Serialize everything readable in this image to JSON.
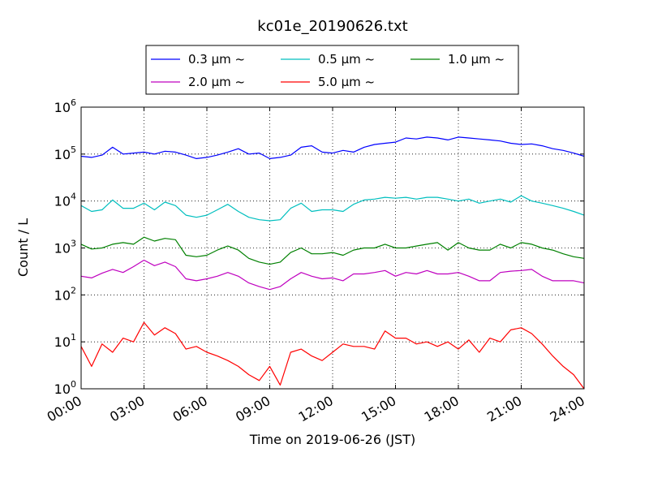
{
  "chart_data": {
    "type": "line",
    "title": "kc01e_20190626.txt",
    "xlabel": "Time on 2019-06-26 (JST)",
    "ylabel": "Count / L",
    "yscale": "log",
    "ylim": [
      1,
      1000000
    ],
    "xlim": [
      "00:00",
      "24:00"
    ],
    "x_ticks": [
      "00:00",
      "03:00",
      "06:00",
      "09:00",
      "12:00",
      "15:00",
      "18:00",
      "21:00",
      "24:00"
    ],
    "y_ticks": [
      {
        "base": "10",
        "exp": "0"
      },
      {
        "base": "10",
        "exp": "1"
      },
      {
        "base": "10",
        "exp": "2"
      },
      {
        "base": "10",
        "exp": "3"
      },
      {
        "base": "10",
        "exp": "4"
      },
      {
        "base": "10",
        "exp": "5"
      },
      {
        "base": "10",
        "exp": "6"
      }
    ],
    "grid": true,
    "legend_position": "top",
    "x": [
      "00:00",
      "00:30",
      "01:00",
      "01:30",
      "02:00",
      "02:30",
      "03:00",
      "03:30",
      "04:00",
      "04:30",
      "05:00",
      "05:30",
      "06:00",
      "06:30",
      "07:00",
      "07:30",
      "08:00",
      "08:30",
      "09:00",
      "09:30",
      "10:00",
      "10:30",
      "11:00",
      "11:30",
      "12:00",
      "12:30",
      "13:00",
      "13:30",
      "14:00",
      "14:30",
      "15:00",
      "15:30",
      "16:00",
      "16:30",
      "17:00",
      "17:30",
      "18:00",
      "18:30",
      "19:00",
      "19:30",
      "20:00",
      "20:30",
      "21:00",
      "21:30",
      "22:00",
      "22:30",
      "23:00",
      "23:30",
      "24:00"
    ],
    "series": [
      {
        "name": "0.3 μm ~",
        "color": "#0000ff",
        "values": [
          90000,
          85000,
          95000,
          140000,
          100000,
          105000,
          110000,
          100000,
          115000,
          110000,
          95000,
          80000,
          85000,
          95000,
          110000,
          130000,
          100000,
          105000,
          80000,
          85000,
          95000,
          140000,
          150000,
          110000,
          105000,
          120000,
          110000,
          140000,
          160000,
          170000,
          180000,
          220000,
          210000,
          230000,
          220000,
          200000,
          230000,
          220000,
          210000,
          200000,
          190000,
          170000,
          160000,
          165000,
          150000,
          130000,
          120000,
          105000,
          90000
        ]
      },
      {
        "name": "0.5 μm ~",
        "color": "#00bfbf",
        "values": [
          8000,
          6000,
          6500,
          10500,
          7000,
          7000,
          9000,
          6500,
          9500,
          8000,
          5000,
          4500,
          5000,
          6500,
          8500,
          6000,
          4500,
          4000,
          3800,
          4000,
          7000,
          9000,
          6000,
          6500,
          6500,
          6000,
          8500,
          10500,
          11000,
          12000,
          11500,
          12000,
          11000,
          12000,
          12000,
          11000,
          10000,
          11000,
          9000,
          10000,
          11000,
          9500,
          13000,
          10000,
          9000,
          8000,
          7000,
          6000,
          5000
        ]
      },
      {
        "name": "1.0 μm ~",
        "color": "#008000",
        "values": [
          1200,
          950,
          1000,
          1200,
          1300,
          1200,
          1700,
          1400,
          1600,
          1500,
          700,
          650,
          700,
          900,
          1100,
          900,
          600,
          500,
          450,
          500,
          800,
          1000,
          750,
          750,
          800,
          700,
          900,
          1000,
          1000,
          1200,
          1000,
          1000,
          1100,
          1200,
          1300,
          900,
          1300,
          1000,
          900,
          900,
          1200,
          1000,
          1300,
          1200,
          1000,
          900,
          750,
          650,
          600
        ]
      },
      {
        "name": "2.0 μm ~",
        "color": "#bf00bf",
        "values": [
          250,
          230,
          290,
          350,
          300,
          400,
          550,
          420,
          500,
          400,
          220,
          200,
          220,
          250,
          300,
          250,
          180,
          150,
          130,
          150,
          220,
          300,
          250,
          220,
          230,
          200,
          280,
          280,
          300,
          330,
          250,
          300,
          280,
          330,
          280,
          280,
          300,
          250,
          200,
          200,
          300,
          320,
          330,
          350,
          250,
          200,
          200,
          200,
          180
        ]
      },
      {
        "name": "5.0 μm ~",
        "color": "#ff0000",
        "values": [
          8,
          3,
          9,
          6,
          12,
          10,
          26,
          14,
          20,
          15,
          7,
          8,
          6,
          5,
          4,
          3,
          2,
          1.5,
          3,
          1.2,
          6,
          7,
          5,
          4,
          6,
          9,
          8,
          8,
          7,
          17,
          12,
          12,
          9,
          10,
          8,
          10,
          7,
          11,
          6,
          12,
          10,
          18,
          20,
          15,
          9,
          5,
          3,
          2,
          1
        ]
      }
    ]
  }
}
